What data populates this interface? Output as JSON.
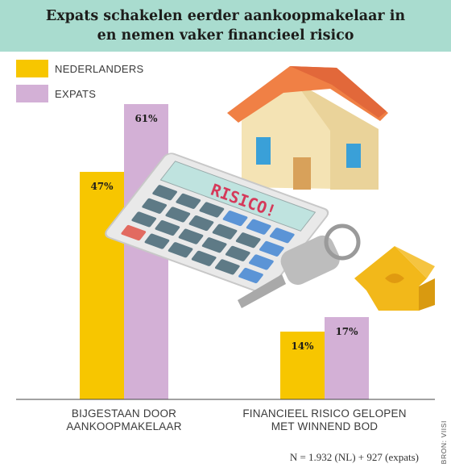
{
  "header": {
    "title_line1": "Expats schakelen eerder aankoopmakelaar in",
    "title_line2": "en nemen vaker financieel risico"
  },
  "legend": {
    "items": [
      {
        "label": "NEDERLANDERS",
        "color": "#f7c600"
      },
      {
        "label": "EXPATS",
        "color": "#d3b0d6"
      }
    ]
  },
  "chart_data": {
    "type": "bar",
    "categories": [
      "BIJGESTAAN DOOR\nAANKOOPMAKELAAR",
      "FINANCIEEL RISICO GELOPEN\nMET WINNEND BOD"
    ],
    "series": [
      {
        "name": "NEDERLANDERS",
        "values": [
          47,
          14
        ],
        "labels": [
          "47%",
          "14%"
        ],
        "color": "#f7c600"
      },
      {
        "name": "EXPATS",
        "values": [
          61,
          17
        ],
        "labels": [
          "61%",
          "17%"
        ],
        "color": "#d3b0d6"
      }
    ],
    "ylim": [
      0,
      70
    ],
    "grid": false,
    "legend_position": "top-left",
    "title": "Expats schakelen eerder aankoopmakelaar in en nemen vaker financieel risico"
  },
  "illustration": {
    "calculator_display": "RISICO!",
    "icons": [
      "house-icon",
      "calculator-icon",
      "key-icon"
    ]
  },
  "footer": {
    "note": "N = 1.932 (NL) + 927 (expats)",
    "source": "BRON: VIISI"
  }
}
